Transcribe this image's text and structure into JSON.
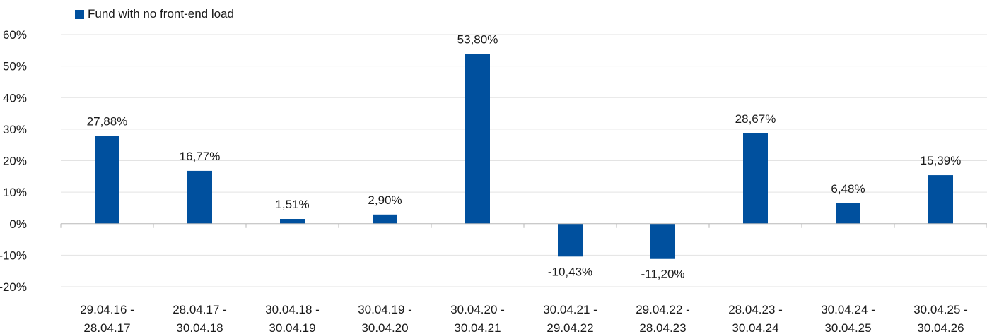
{
  "chart_data": {
    "type": "bar",
    "categories": [
      [
        "29.04.16 -",
        "28.04.17"
      ],
      [
        "28.04.17 -",
        "30.04.18"
      ],
      [
        "30.04.18 -",
        "30.04.19"
      ],
      [
        "30.04.19 -",
        "30.04.20"
      ],
      [
        "30.04.20 -",
        "30.04.21"
      ],
      [
        "30.04.21 -",
        "29.04.22"
      ],
      [
        "29.04.22 -",
        "28.04.23"
      ],
      [
        "28.04.23 -",
        "30.04.24"
      ],
      [
        "30.04.24 -",
        "30.04.25"
      ],
      [
        "30.04.25 -",
        "30.04.26"
      ]
    ],
    "series": [
      {
        "name": "Fund with no front-end load",
        "color": "#00509e",
        "values": [
          27.88,
          16.77,
          1.51,
          2.9,
          53.8,
          -10.43,
          -11.2,
          28.67,
          6.48,
          15.39
        ],
        "labels": [
          "27,88%",
          "16,77%",
          "1,51%",
          "2,90%",
          "53,80%",
          "-10,43%",
          "-11,20%",
          "28,67%",
          "6,48%",
          "15,39%"
        ]
      }
    ],
    "yticks": [
      60,
      50,
      40,
      30,
      20,
      10,
      0,
      -10,
      -20
    ],
    "ytick_labels": [
      "60%",
      "50%",
      "40%",
      "30%",
      "20%",
      "10%",
      "0%",
      "-10%",
      "-20%"
    ],
    "ylim": [
      -20,
      60
    ],
    "grid": true,
    "legend_position": "top-left"
  }
}
